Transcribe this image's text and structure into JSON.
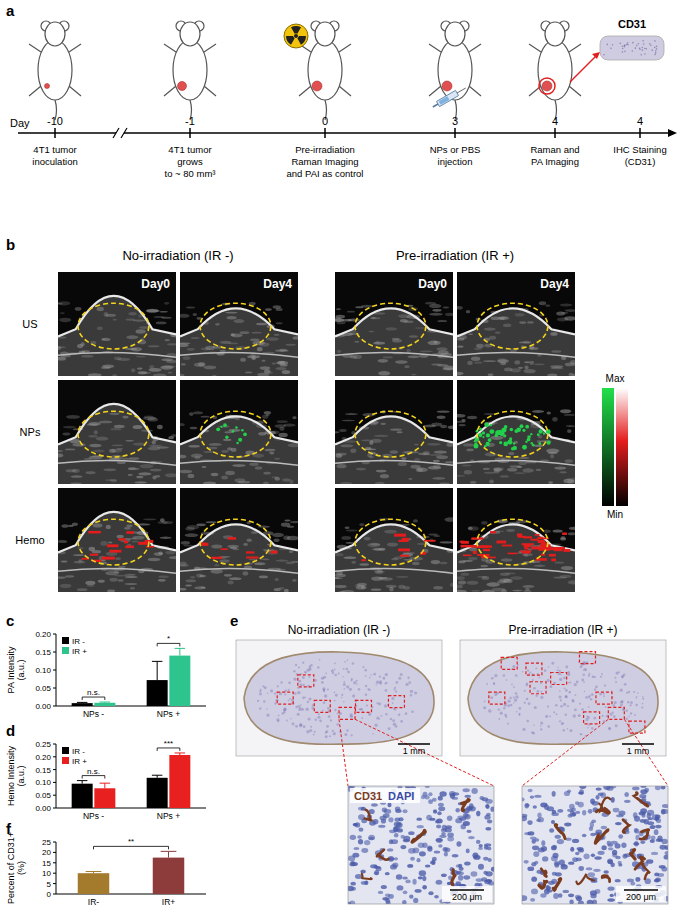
{
  "figure": {
    "panel_labels": [
      "a",
      "b",
      "c",
      "d",
      "e",
      "f"
    ],
    "timeline": {
      "axis_label": "Day",
      "end_label": "CD31",
      "events": [
        {
          "day": -10,
          "lines": [
            "4T1 tumor",
            "inoculation"
          ]
        },
        {
          "day": -1,
          "lines": [
            "4T1 tumor",
            "grows",
            "to ~ 80 mm³"
          ]
        },
        {
          "day": 0,
          "lines": [
            "Pre-irradiation",
            "Raman Imaging",
            "and PAI as control"
          ]
        },
        {
          "day": 3,
          "lines": [
            "NPs or PBS",
            "injection"
          ]
        },
        {
          "day": 4,
          "lines": [
            "Raman and",
            "PA Imaging"
          ]
        },
        {
          "day": 4,
          "lines": [
            "IHC Staining",
            "(CD31)"
          ]
        }
      ]
    },
    "imaging": {
      "groups": [
        "No-irradiation (IR -)",
        "Pre-irradiation (IR +)"
      ],
      "days": [
        "Day0",
        "Day4"
      ],
      "rows": [
        "US",
        "NPs",
        "Hemo"
      ],
      "colorbar": {
        "max_label": "Max",
        "min_label": "Min"
      }
    },
    "histology": {
      "groups": [
        "No-irradiation (IR -)",
        "Pre-irradiation (IR +)"
      ],
      "scale_bars": [
        "1 mm",
        "1 mm"
      ],
      "zoom_scale_bars": [
        "200 μm",
        "200 μm"
      ],
      "stain_labels": [
        "CD31",
        "DAPI"
      ]
    }
  },
  "chart_data": [
    {
      "type": "bar",
      "y_label": "PA Intensity (a.u.)",
      "categories": [
        "NPs -",
        "NPs +"
      ],
      "series": [
        {
          "name": "IR -",
          "color": "#000000",
          "values": [
            0.008,
            0.072
          ],
          "errors": [
            0.002,
            0.052
          ]
        },
        {
          "name": "IR +",
          "color": "#2dc48d",
          "values": [
            0.009,
            0.14
          ],
          "errors": [
            0.002,
            0.02
          ]
        }
      ],
      "ylim": [
        0,
        0.2
      ],
      "yticks": [
        {
          "value": 0,
          "label": "0.00"
        },
        {
          "value": 0.05,
          "label": "0.05"
        },
        {
          "value": 0.1,
          "label": "0.10"
        },
        {
          "value": 0.15,
          "label": "0.15"
        },
        {
          "value": 0.2,
          "label": "0.20"
        }
      ],
      "legend": "upper left",
      "annotations": [
        {
          "text": "n.s.",
          "categories": [
            0
          ]
        },
        {
          "text": "*",
          "categories": [
            1
          ]
        }
      ]
    },
    {
      "type": "bar",
      "y_label": "Hemo Intensity (a.u.)",
      "categories": [
        "NPs -",
        "NPs +"
      ],
      "series": [
        {
          "name": "IR -",
          "color": "#000000",
          "values": [
            0.095,
            0.118
          ],
          "errors": [
            0.012,
            0.01
          ]
        },
        {
          "name": "IR +",
          "color": "#e8201f",
          "values": [
            0.077,
            0.207
          ],
          "errors": [
            0.02,
            0.008
          ]
        }
      ],
      "ylim": [
        0,
        0.25
      ],
      "yticks": [
        {
          "value": 0,
          "label": "0.00"
        },
        {
          "value": 0.05,
          "label": "0.05"
        },
        {
          "value": 0.1,
          "label": "0.10"
        },
        {
          "value": 0.15,
          "label": "0.15"
        },
        {
          "value": 0.2,
          "label": "0.20"
        },
        {
          "value": 0.25,
          "label": "0.25"
        }
      ],
      "legend": "upper left",
      "annotations": [
        {
          "text": "n.s.",
          "categories": [
            0
          ]
        },
        {
          "text": "***",
          "categories": [
            1
          ]
        }
      ]
    },
    {
      "type": "bar",
      "y_label": "Percent of CD31+ (%)",
      "categories": [
        "IR-",
        "IR+"
      ],
      "values": [
        10,
        17.5
      ],
      "errors": [
        0.8,
        3
      ],
      "colors": [
        "#a47a2c",
        "#8e3b3b"
      ],
      "ylim": [
        0,
        25
      ],
      "yticks": [
        0,
        5,
        10,
        15,
        20,
        25
      ],
      "annotations": [
        {
          "text": "**",
          "categories": [
            0,
            1
          ]
        }
      ]
    }
  ]
}
